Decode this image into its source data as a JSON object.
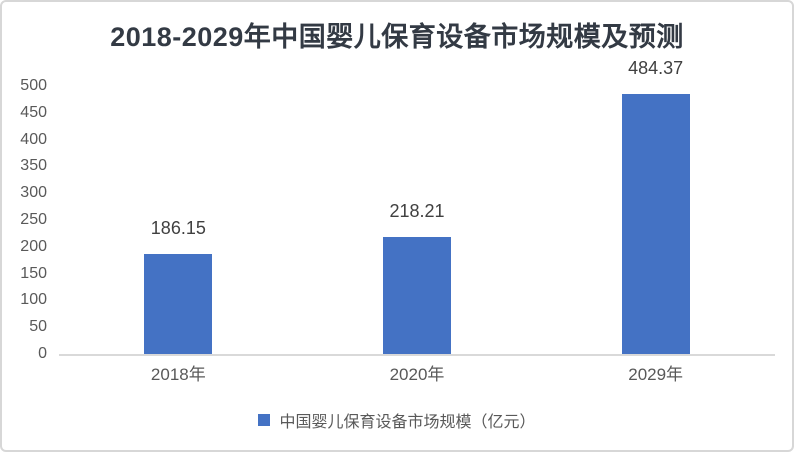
{
  "chart_data": {
    "type": "bar",
    "title": "2018-2029年中国婴儿保育设备市场规模及预测",
    "categories": [
      "2018年",
      "2020年",
      "2029年"
    ],
    "series": [
      {
        "name": "中国婴儿保育设备市场规模（亿元）",
        "values": [
          186.15,
          218.21,
          484.37
        ]
      }
    ],
    "data_labels": [
      "186.15",
      "218.21",
      "484.37"
    ],
    "xlabel": "",
    "ylabel": "",
    "ylim": [
      0,
      500
    ],
    "yticks": [
      0,
      50,
      100,
      150,
      200,
      250,
      300,
      350,
      400,
      450,
      500
    ],
    "grid": false,
    "legend_position": "bottom",
    "colors": {
      "bar": "#4472C4",
      "title": "#333A44",
      "tick_labels": "#595959",
      "data_labels": "#404040",
      "axis_line": "#D9D9D9"
    }
  }
}
